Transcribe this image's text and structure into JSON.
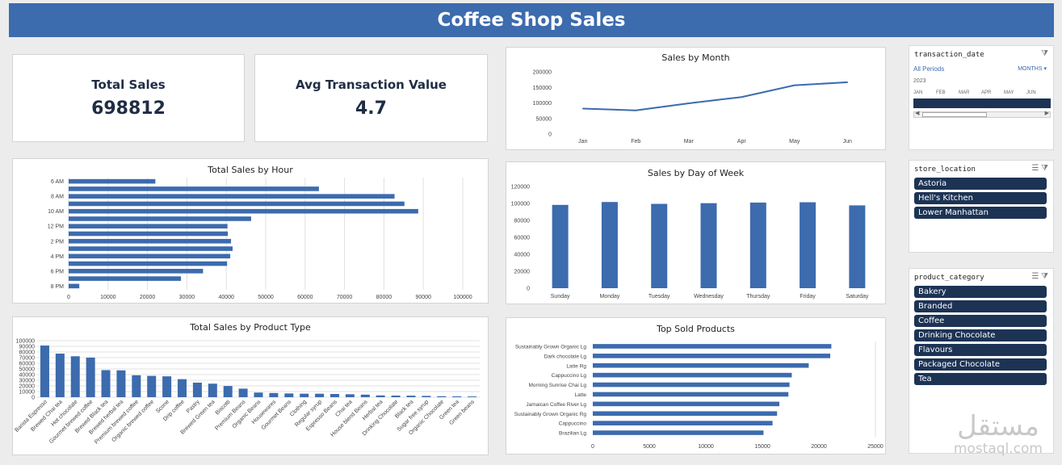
{
  "header": {
    "title": "Coffee Shop Sales"
  },
  "kpi": {
    "total_sales_label": "Total Sales",
    "total_sales_value": "698812",
    "avg_label": "Avg Transaction Value",
    "avg_value": "4.7"
  },
  "colors": {
    "accent": "#3c6bae",
    "header": "#3c6bae",
    "slicer_item": "#1c3354",
    "text_dark": "#1f2d44"
  },
  "slicers": {
    "timeline": {
      "field": "transaction_date",
      "period": "All Periods",
      "level": "MONTHS",
      "year": "2023",
      "months": [
        "JAN",
        "FEB",
        "MAR",
        "APR",
        "MAY",
        "JUN"
      ]
    },
    "store_location": {
      "field": "store_location",
      "items": [
        "Astoria",
        "Hell's Kitchen",
        "Lower Manhattan"
      ]
    },
    "product_category": {
      "field": "product_category",
      "items": [
        "Bakery",
        "Branded",
        "Coffee",
        "Drinking Chocolate",
        "Flavours",
        "Packaged Chocolate",
        "Tea"
      ]
    }
  },
  "watermark": {
    "brand": "مستقل",
    "url": "mostaql.com"
  },
  "chart_data": [
    {
      "id": "month",
      "type": "line",
      "title": "Sales by Month",
      "categories": [
        "Jan",
        "Feb",
        "Mar",
        "Apr",
        "May",
        "Jun"
      ],
      "values": [
        81700,
        76100,
        98800,
        118900,
        156700,
        166500
      ],
      "ylim": [
        0,
        200000
      ],
      "yticks": [
        0,
        50000,
        100000,
        150000,
        200000
      ],
      "grid": false
    },
    {
      "id": "hour",
      "type": "bar",
      "orientation": "horizontal",
      "title": "Total Sales by Hour",
      "categories": [
        "6 AM",
        "7 AM",
        "8 AM",
        "9 AM",
        "10 AM",
        "11 AM",
        "12 PM",
        "1 PM",
        "2 PM",
        "3 PM",
        "4 PM",
        "5 PM",
        "6 PM",
        "7 PM",
        "8 PM"
      ],
      "tick_labels": [
        "6 AM",
        "",
        "8 AM",
        "",
        "10 AM",
        "",
        "12 PM",
        "",
        "2 PM",
        "",
        "4 PM",
        "",
        "6 PM",
        "",
        "8 PM"
      ],
      "values": [
        22000,
        63500,
        82700,
        85200,
        88700,
        46300,
        40300,
        40400,
        41200,
        41600,
        41000,
        40200,
        34100,
        28500,
        2700
      ],
      "xlim": [
        0,
        100000
      ],
      "xticks": [
        0,
        10000,
        20000,
        30000,
        40000,
        50000,
        60000,
        70000,
        80000,
        90000,
        100000
      ],
      "grid": true
    },
    {
      "id": "dow",
      "type": "bar",
      "title": "Sales by Day of Week",
      "categories": [
        "Sunday",
        "Monday",
        "Tuesday",
        "Wednesday",
        "Thursday",
        "Friday",
        "Saturday"
      ],
      "values": [
        98300,
        101700,
        99500,
        100300,
        101000,
        101400,
        97700
      ],
      "ylim": [
        0,
        120000
      ],
      "yticks": [
        0,
        20000,
        40000,
        60000,
        80000,
        100000,
        120000
      ],
      "grid": false
    },
    {
      "id": "ptype",
      "type": "bar",
      "title": "Total Sales by Product Type",
      "categories": [
        "Barista Espresso",
        "Brewed Chai tea",
        "Hot chocolate",
        "Gourmet brewed coffee",
        "Brewed Black tea",
        "Brewed herbal tea",
        "Premium brewed coffee",
        "Organic brewed coffee",
        "Scone",
        "Drip coffee",
        "Pastry",
        "Brewed Green tea",
        "Biscotti",
        "Premium Beans",
        "Organic Beans",
        "Housewares",
        "Gourmet Beans",
        "Clothing",
        "Regular syrup",
        "Espresso Beans",
        "Chai tea",
        "House blend Beans",
        "Herbal tea",
        "Drinking Chocolate",
        "Black tea",
        "Sugar free syrup",
        "Organic Chocolate",
        "Green tea",
        "Green beans"
      ],
      "values": [
        91400,
        77100,
        72400,
        70000,
        47900,
        47500,
        38800,
        37700,
        36900,
        31900,
        25700,
        23900,
        19800,
        15100,
        8200,
        7400,
        6600,
        6200,
        6100,
        5700,
        5200,
        4500,
        3100,
        2800,
        2700,
        2300,
        1700,
        1500,
        1300
      ],
      "ylim": [
        0,
        100000
      ],
      "yticks": [
        0,
        10000,
        20000,
        30000,
        40000,
        50000,
        60000,
        70000,
        80000,
        90000,
        100000
      ],
      "grid": true
    },
    {
      "id": "top",
      "type": "bar",
      "orientation": "horizontal",
      "title": "Top Sold Products",
      "categories": [
        "Sustainably Grown Organic Lg",
        "Dark chocolate Lg",
        "Latte Rg",
        "Cappuccino Lg",
        "Morning Sunrise Chai Lg",
        "Latte",
        "Jamaican Coffee River Lg",
        "Sustainably Grown Organic Rg",
        "Cappuccino",
        "Brazilian Lg"
      ],
      "values": [
        21100,
        21000,
        19100,
        17600,
        17400,
        17300,
        16500,
        16300,
        15900,
        15100
      ],
      "xlim": [
        0,
        25000
      ],
      "xticks": [
        0,
        5000,
        10000,
        15000,
        20000,
        25000
      ],
      "grid": false
    }
  ]
}
